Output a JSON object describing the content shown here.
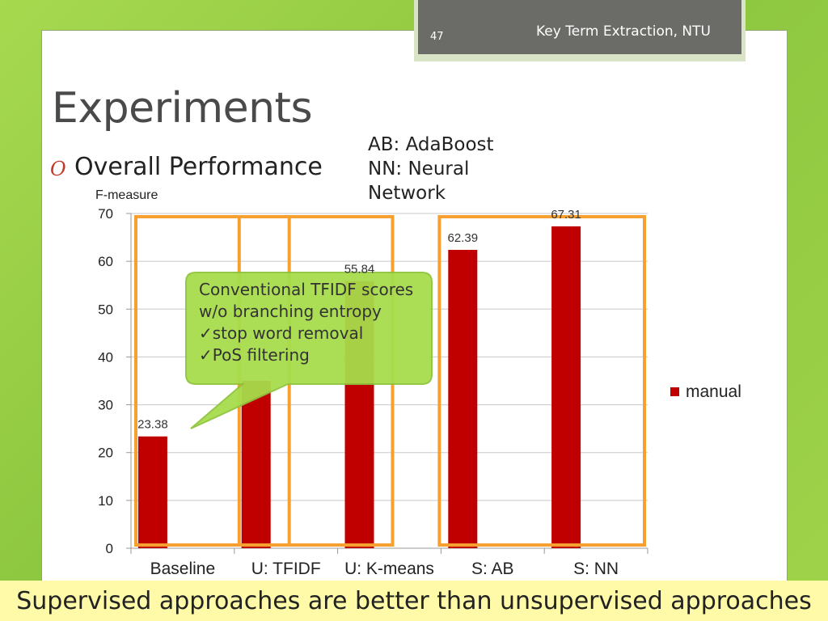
{
  "header": {
    "slide_number": "47",
    "title": "Key Term Extraction, NTU"
  },
  "slide": {
    "title": "Experiments",
    "bullet": "Overall Performance",
    "legend_note": [
      "AB: AdaBoost",
      "NN: Neural",
      "Network"
    ]
  },
  "callout": {
    "lines": [
      "Conventional TFIDF scores",
      "w/o branching entropy",
      "✓stop word removal",
      "✓PoS filtering"
    ]
  },
  "banner": {
    "text": "Supervised approaches are better than unsupervised approaches"
  },
  "colors": {
    "bar": "#c00000",
    "highlight_box": "#f5a030",
    "callout_fill": "#a6dd4b",
    "callout_border": "#8ec43a"
  },
  "chart_data": {
    "type": "bar",
    "ylabel": "F-measure",
    "ylim": [
      0,
      70
    ],
    "yticks": [
      "0",
      "10",
      "20",
      "30",
      "40",
      "50",
      "60",
      "70"
    ],
    "categories": [
      "Baseline",
      "U: TFIDF",
      "U: K-means",
      "S: AB",
      "S: NN"
    ],
    "series": [
      {
        "name": "manual",
        "values": [
          23.38,
          35,
          55.84,
          62.39,
          67.31
        ],
        "labels": [
          "23.38",
          "",
          "55.84",
          "62.39",
          "67.31"
        ]
      }
    ],
    "legend_position": "right",
    "grid": true,
    "highlight_groups": [
      [
        "Baseline",
        "U: TFIDF"
      ],
      [
        "U: TFIDF",
        "U: K-means"
      ],
      [
        "S: AB",
        "S: NN"
      ]
    ]
  }
}
